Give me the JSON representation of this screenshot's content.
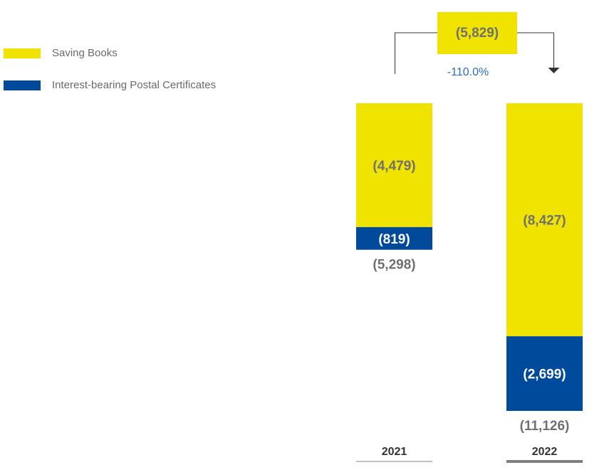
{
  "chart_data": {
    "type": "bar",
    "stacked": true,
    "categories": [
      "2021",
      "2022"
    ],
    "series": [
      {
        "name": "Saving Books",
        "values": [
          -4479,
          -8427
        ],
        "labels": [
          "(4,479)",
          "(8,427)"
        ],
        "color": "#f1e300"
      },
      {
        "name": "Interest-bearing Postal Certificates",
        "values": [
          -819,
          -2699
        ],
        "labels": [
          "(819)",
          "(2,699)"
        ],
        "color": "#004a9c"
      }
    ],
    "totals": [
      -5298,
      -11126
    ],
    "total_labels": [
      "(5,298)",
      "(11,126)"
    ],
    "change": {
      "value": -5829,
      "label": "(5,829)",
      "percent_label": "-110.0%"
    },
    "legend_position": "top-left"
  },
  "colors": {
    "total_text": "#707070",
    "percent_text": "#2f6cb3",
    "axis": "#808080",
    "bracket": "#333333"
  }
}
